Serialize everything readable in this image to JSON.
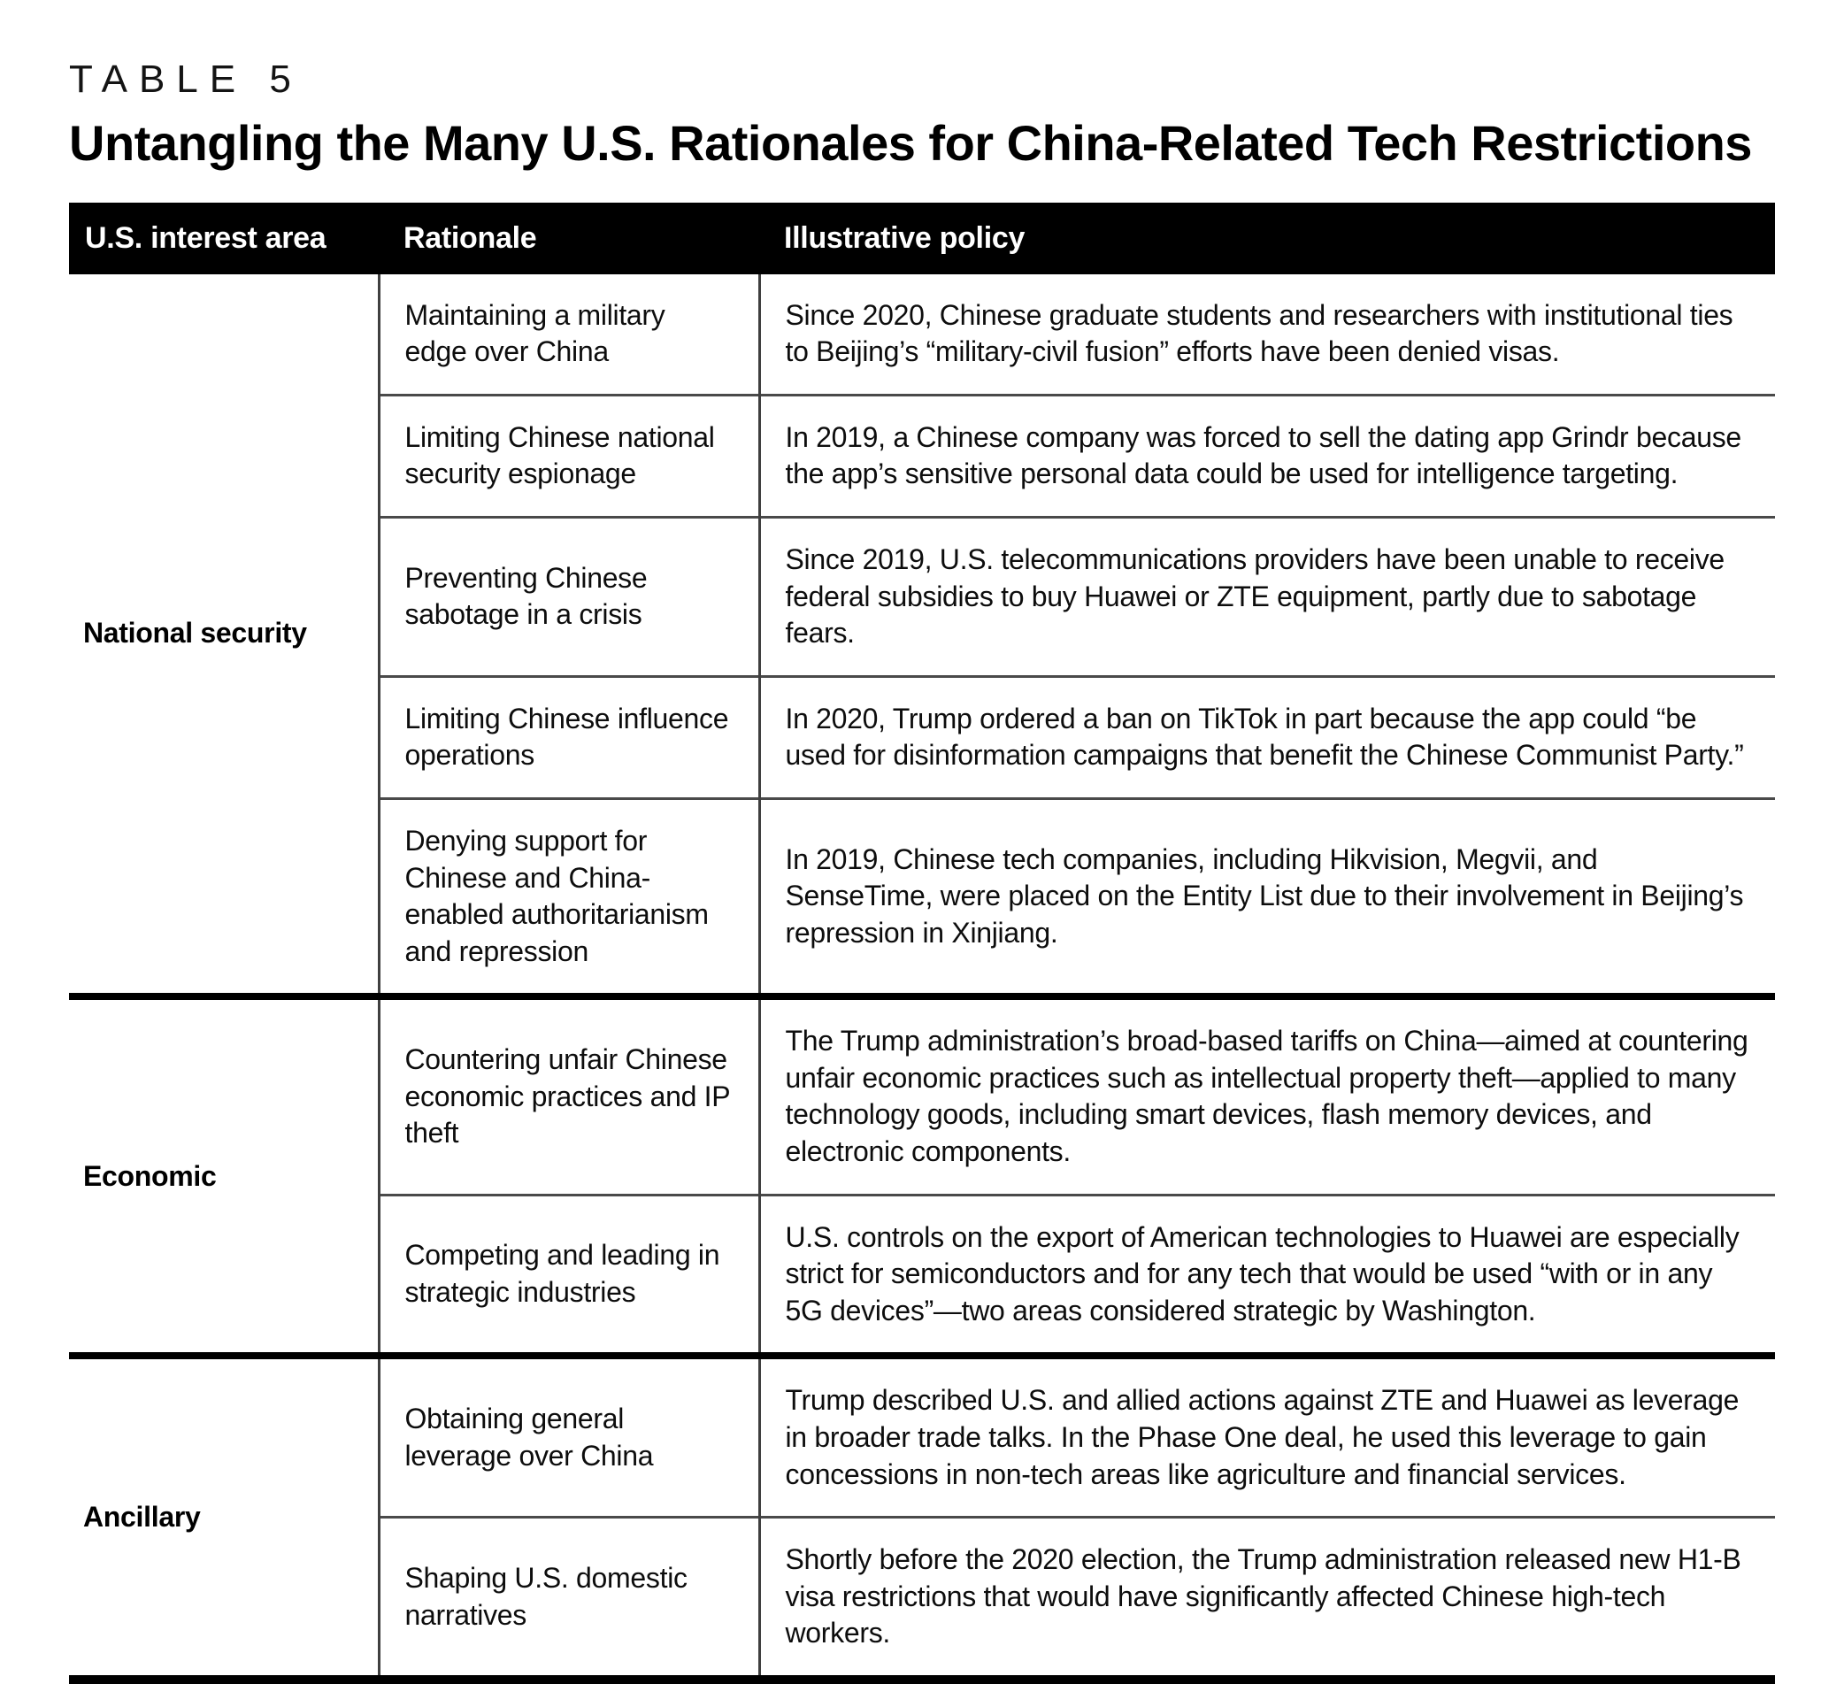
{
  "table_label": "TABLE 5",
  "title": "Untangling the Many U.S. Rationales for China-Related Tech Restrictions",
  "columns": [
    "U.S. interest area",
    "Rationale",
    "Illustrative policy"
  ],
  "groups": [
    {
      "area": "National security",
      "rows": [
        {
          "rationale": "Maintaining a military edge over China",
          "policy": "Since 2020, Chinese graduate students and researchers with institutional ties to Beijing’s “military-civil fusion” efforts have been denied visas."
        },
        {
          "rationale": "Limiting Chinese national security espionage",
          "policy": "In 2019, a Chinese company was forced to sell the dating app Grindr because the app’s sensitive personal data could be used for intelligence targeting."
        },
        {
          "rationale": "Preventing Chinese sabotage in a crisis",
          "policy": "Since 2019, U.S. telecommunications providers have been unable to receive federal subsidies to buy Huawei or ZTE equipment, partly due to sabotage fears."
        },
        {
          "rationale": "Limiting Chinese influence operations",
          "policy": "In 2020, Trump ordered a ban on TikTok in part because the app could “be used for disinformation campaigns that benefit the Chinese Communist Party.”"
        },
        {
          "rationale": "Denying support for Chinese and China-enabled authoritarianism and repression",
          "policy": "In 2019, Chinese tech companies, including Hikvision, Megvii, and SenseTime, were placed on the Entity List due to their involvement in Beijing’s repression in Xinjiang."
        }
      ]
    },
    {
      "area": "Economic",
      "rows": [
        {
          "rationale": "Countering unfair Chinese economic practices and IP theft",
          "policy": "The Trump administration’s broad-based tariffs on China—aimed at countering unfair economic practices such as intellectual property theft—applied to many technology goods, including smart devices, flash memory devices, and electronic components."
        },
        {
          "rationale": "Competing and leading in strategic industries",
          "policy": "U.S. controls on the export of American technologies to Huawei are especially strict for semiconductors and for any tech that would be used “with or in any 5G devices”—two areas considered strategic by Washington."
        }
      ]
    },
    {
      "area": "Ancillary",
      "rows": [
        {
          "rationale": "Obtaining general leverage over China",
          "policy": "Trump described U.S. and allied actions against ZTE and Huawei as leverage in broader trade talks. In the Phase One deal, he used this leverage to gain concessions in non-tech areas like agriculture and financial services."
        },
        {
          "rationale": "Shaping U.S. domestic narratives",
          "policy": "Shortly before the 2020 election, the Trump administration released new H1-B visa restrictions that would have significantly affected Chinese high-tech workers."
        }
      ]
    }
  ]
}
